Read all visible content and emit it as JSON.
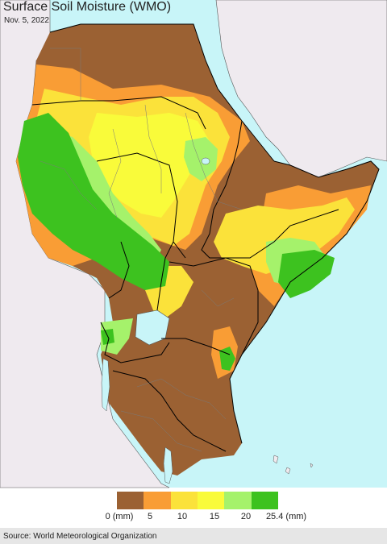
{
  "header": {
    "title": "Surface Soil Moisture (WMO)",
    "date": "Nov. 5, 2022"
  },
  "legend": {
    "unit": "(mm)",
    "ticks": [
      "0 (mm)",
      "5",
      "10",
      "15",
      "20",
      "25.4 (mm)"
    ],
    "colors": [
      "#9b6133",
      "#f99d35",
      "#fbe23a",
      "#f9fb3a",
      "#a5f26b",
      "#3dc21f"
    ]
  },
  "map": {
    "ocean_color": "#c8f5f8",
    "land_outside_color": "#efeaef",
    "border_color": "#000000",
    "internal_border_color": "#7a7a7a",
    "lake_color": "#c8f5f8"
  },
  "footer": {
    "source": "Source: World Meteorological Organization"
  }
}
